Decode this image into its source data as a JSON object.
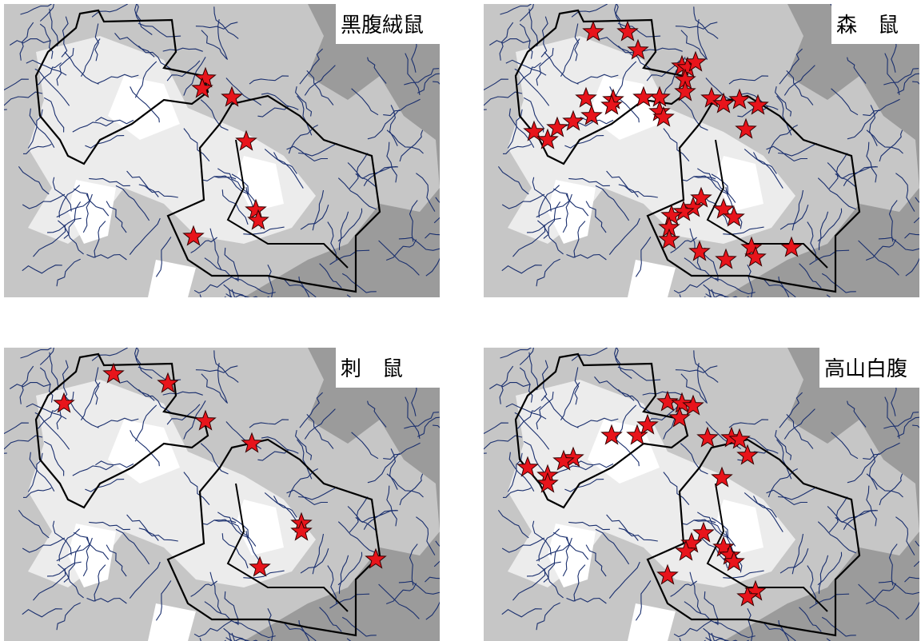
{
  "panels": [
    {
      "label": "黑腹絨鼠"
    },
    {
      "label": "森　鼠"
    },
    {
      "label": "刺　鼠"
    },
    {
      "label": "高山白腹"
    }
  ]
}
